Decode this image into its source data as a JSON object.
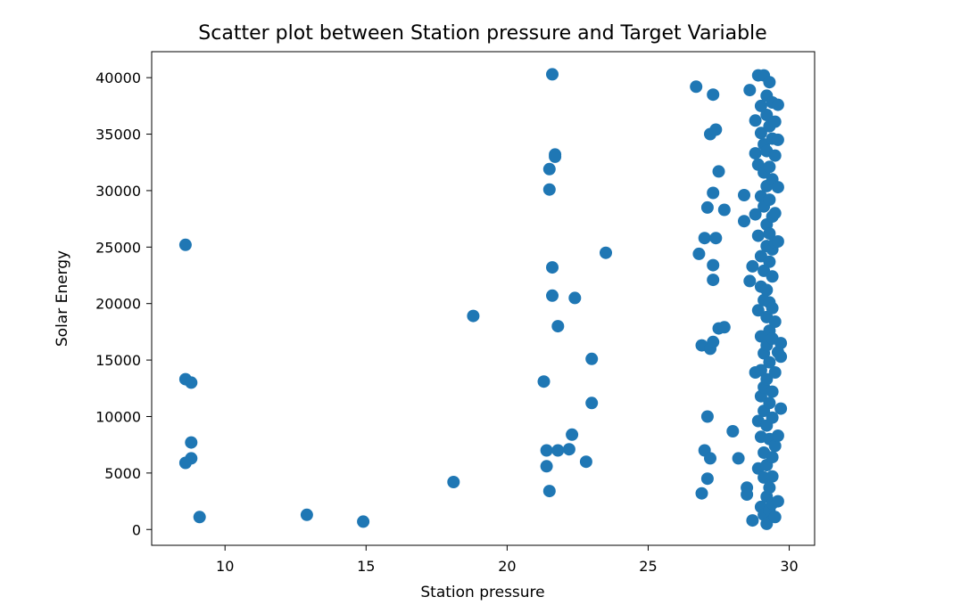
{
  "chart_data": {
    "type": "scatter",
    "title": "Scatter plot between Station pressure and Target Variable",
    "xlabel": "Station pressure",
    "ylabel": "Solar Energy",
    "xlim": [
      7.4,
      30.9
    ],
    "ylim": [
      -1400,
      42300
    ],
    "xticks": [
      10,
      15,
      20,
      25,
      30
    ],
    "xtick_labels": [
      "10",
      "15",
      "20",
      "25",
      "30"
    ],
    "yticks": [
      0,
      5000,
      10000,
      15000,
      20000,
      25000,
      30000,
      35000,
      40000
    ],
    "ytick_labels": [
      "0",
      "5000",
      "10000",
      "15000",
      "20000",
      "25000",
      "30000",
      "35000",
      "40000"
    ],
    "grid": false,
    "marker_color": "#1f77b4",
    "points": [
      [
        8.6,
        25200
      ],
      [
        8.6,
        13300
      ],
      [
        8.8,
        13000
      ],
      [
        8.8,
        7700
      ],
      [
        8.8,
        6300
      ],
      [
        8.6,
        5900
      ],
      [
        9.1,
        1100
      ],
      [
        12.9,
        1300
      ],
      [
        14.9,
        700
      ],
      [
        18.1,
        4200
      ],
      [
        18.8,
        18900
      ],
      [
        21.3,
        13100
      ],
      [
        21.4,
        7000
      ],
      [
        21.4,
        5600
      ],
      [
        21.5,
        3400
      ],
      [
        21.5,
        31900
      ],
      [
        21.5,
        30100
      ],
      [
        21.6,
        40300
      ],
      [
        21.6,
        23200
      ],
      [
        21.6,
        20700
      ],
      [
        21.7,
        33200
      ],
      [
        21.7,
        33000
      ],
      [
        21.8,
        18000
      ],
      [
        21.8,
        7000
      ],
      [
        22.2,
        7100
      ],
      [
        22.3,
        8400
      ],
      [
        22.4,
        20500
      ],
      [
        22.8,
        6000
      ],
      [
        23.0,
        15100
      ],
      [
        23.0,
        11200
      ],
      [
        23.5,
        24500
      ],
      [
        26.7,
        39200
      ],
      [
        26.8,
        24400
      ],
      [
        26.9,
        16300
      ],
      [
        26.9,
        3200
      ],
      [
        27.0,
        25800
      ],
      [
        27.0,
        7000
      ],
      [
        27.1,
        10000
      ],
      [
        27.1,
        28500
      ],
      [
        27.1,
        4500
      ],
      [
        27.2,
        35000
      ],
      [
        27.2,
        6300
      ],
      [
        27.2,
        16000
      ],
      [
        27.3,
        38500
      ],
      [
        27.3,
        29800
      ],
      [
        27.3,
        23400
      ],
      [
        27.3,
        22100
      ],
      [
        27.3,
        16600
      ],
      [
        27.4,
        35400
      ],
      [
        27.4,
        25800
      ],
      [
        27.5,
        31700
      ],
      [
        27.5,
        17800
      ],
      [
        27.7,
        28300
      ],
      [
        27.7,
        17900
      ],
      [
        28.0,
        8700
      ],
      [
        28.2,
        6300
      ],
      [
        28.4,
        29600
      ],
      [
        28.4,
        27300
      ],
      [
        28.5,
        3700
      ],
      [
        28.5,
        3100
      ],
      [
        28.6,
        38900
      ],
      [
        28.6,
        22000
      ],
      [
        28.7,
        23300
      ],
      [
        28.7,
        800
      ],
      [
        28.8,
        36200
      ],
      [
        28.8,
        33300
      ],
      [
        28.8,
        27900
      ],
      [
        28.8,
        13900
      ],
      [
        28.9,
        40200
      ],
      [
        28.9,
        32300
      ],
      [
        28.9,
        26000
      ],
      [
        28.9,
        19400
      ],
      [
        28.9,
        9600
      ],
      [
        28.9,
        5400
      ],
      [
        29.0,
        37500
      ],
      [
        29.0,
        35100
      ],
      [
        29.0,
        29500
      ],
      [
        29.0,
        24200
      ],
      [
        29.0,
        21500
      ],
      [
        29.0,
        17100
      ],
      [
        29.0,
        14100
      ],
      [
        29.0,
        11800
      ],
      [
        29.0,
        8200
      ],
      [
        29.0,
        2000
      ],
      [
        29.1,
        40200
      ],
      [
        29.1,
        34100
      ],
      [
        29.1,
        31600
      ],
      [
        29.1,
        28600
      ],
      [
        29.1,
        22900
      ],
      [
        29.1,
        20300
      ],
      [
        29.1,
        15600
      ],
      [
        29.1,
        12600
      ],
      [
        29.1,
        10500
      ],
      [
        29.1,
        6800
      ],
      [
        29.1,
        4600
      ],
      [
        29.1,
        1300
      ],
      [
        29.2,
        38400
      ],
      [
        29.2,
        36700
      ],
      [
        29.2,
        33500
      ],
      [
        29.2,
        30400
      ],
      [
        29.2,
        27000
      ],
      [
        29.2,
        25100
      ],
      [
        29.2,
        21200
      ],
      [
        29.2,
        18800
      ],
      [
        29.2,
        16300
      ],
      [
        29.2,
        13300
      ],
      [
        29.2,
        9200
      ],
      [
        29.2,
        5700
      ],
      [
        29.2,
        2900
      ],
      [
        29.2,
        500
      ],
      [
        29.3,
        39600
      ],
      [
        29.3,
        35700
      ],
      [
        29.3,
        32100
      ],
      [
        29.3,
        29200
      ],
      [
        29.3,
        26200
      ],
      [
        29.3,
        23700
      ],
      [
        29.3,
        20100
      ],
      [
        29.3,
        17600
      ],
      [
        29.3,
        14800
      ],
      [
        29.3,
        11200
      ],
      [
        29.3,
        8000
      ],
      [
        29.3,
        3700
      ],
      [
        29.3,
        1700
      ],
      [
        29.4,
        37800
      ],
      [
        29.4,
        34600
      ],
      [
        29.4,
        31000
      ],
      [
        29.4,
        27700
      ],
      [
        29.4,
        24800
      ],
      [
        29.4,
        22400
      ],
      [
        29.4,
        19600
      ],
      [
        29.4,
        16900
      ],
      [
        29.4,
        12200
      ],
      [
        29.4,
        9900
      ],
      [
        29.4,
        6400
      ],
      [
        29.4,
        4700
      ],
      [
        29.4,
        2300
      ],
      [
        29.5,
        36100
      ],
      [
        29.5,
        33100
      ],
      [
        29.5,
        28000
      ],
      [
        29.5,
        25400
      ],
      [
        29.5,
        18400
      ],
      [
        29.5,
        13900
      ],
      [
        29.5,
        7400
      ],
      [
        29.5,
        1100
      ],
      [
        29.6,
        37600
      ],
      [
        29.6,
        34500
      ],
      [
        29.6,
        30300
      ],
      [
        29.6,
        25500
      ],
      [
        29.6,
        15700
      ],
      [
        29.6,
        8300
      ],
      [
        29.6,
        2500
      ],
      [
        29.7,
        16500
      ],
      [
        29.7,
        15300
      ],
      [
        29.7,
        10700
      ]
    ]
  }
}
